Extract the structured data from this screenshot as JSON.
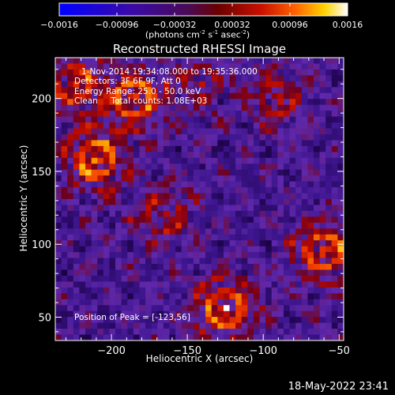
{
  "chart_data": {
    "type": "heatmap",
    "title": "Reconstructed RHESSI Image",
    "xlabel": "Heliocentric X (arcsec)",
    "ylabel": "Heliocentric Y (arcsec)",
    "xlim": [
      -237,
      -47
    ],
    "ylim": [
      34,
      228
    ],
    "x_ticks": [
      "-200",
      "-150",
      "-100",
      "-50"
    ],
    "x_tick_values": [
      -200,
      -150,
      -100,
      -50
    ],
    "y_ticks": [
      "50",
      "100",
      "150",
      "200"
    ],
    "y_tick_values": [
      50,
      100,
      150,
      200
    ],
    "colorbar": {
      "min": -0.0016,
      "max": 0.0016,
      "ticks": [
        "-0.0016",
        "-0.00096",
        "-0.00032",
        "0.00032",
        "0.00096",
        "0.0016"
      ],
      "label_main": "(photons cm",
      "label_sup1": "-2",
      "label_mid1": " s",
      "label_sup2": "-1",
      "label_mid2": " asec",
      "label_sup3": "-2",
      "label_end": ")"
    },
    "annotations": {
      "time": "1-Nov-2014 19:34:08.000 to 19:35:36.000",
      "detectors": "Detectors: 3F 6F 9F, Att 0",
      "energy": "Energy Range: 25.0 - 50.0 keV",
      "clean": "Clean     Total counts: 1.08E+03",
      "peak": "Position of Peak = [-123,56]"
    },
    "peak_position": [
      -123,
      56
    ],
    "total_counts": 1080,
    "sources": [
      {
        "x": -210,
        "y": 158,
        "strength": 1.0
      },
      {
        "x": -185,
        "y": 200,
        "strength": 0.9
      },
      {
        "x": -125,
        "y": 56,
        "strength": 1.0
      },
      {
        "x": -60,
        "y": 95,
        "strength": 0.9
      },
      {
        "x": -225,
        "y": 210,
        "strength": 0.7
      },
      {
        "x": -165,
        "y": 120,
        "strength": 0.5
      },
      {
        "x": -90,
        "y": 200,
        "strength": 0.5
      },
      {
        "x": -140,
        "y": 210,
        "strength": 0.4
      }
    ]
  },
  "timestamp": "18-May-2022 23:41"
}
